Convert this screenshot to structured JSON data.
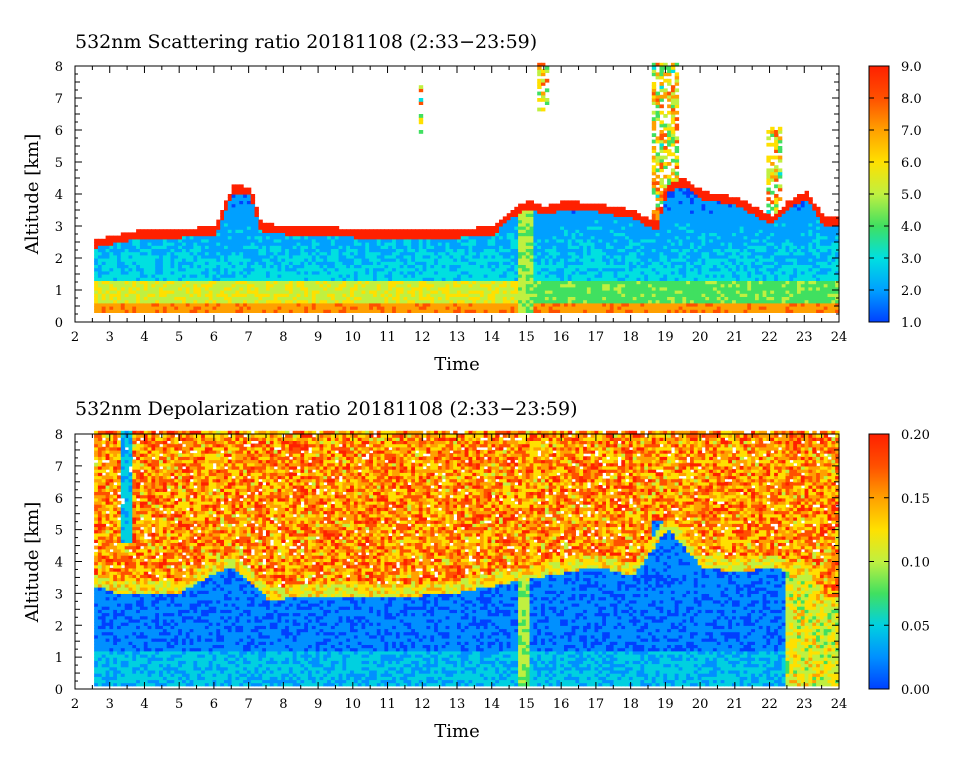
{
  "chart_data": [
    {
      "type": "heatmap",
      "title": "532nm Scattering ratio  20181108 (2:33−23:59)",
      "xlabel": "Time",
      "ylabel": "Altitude [km]",
      "xlim": [
        2,
        24
      ],
      "ylim": [
        0,
        8
      ],
      "x_ticks": [
        "2",
        "3",
        "4",
        "5",
        "6",
        "7",
        "8",
        "9",
        "10",
        "11",
        "12",
        "13",
        "14",
        "15",
        "16",
        "17",
        "18",
        "19",
        "20",
        "21",
        "22",
        "23",
        "24"
      ],
      "y_ticks": [
        "0",
        "1",
        "2",
        "3",
        "4",
        "5",
        "6",
        "7",
        "8"
      ],
      "data_range_hours": [
        2.55,
        24.0
      ],
      "colorbar": {
        "range": [
          1.0,
          9.0
        ],
        "ticks": [
          "1.0",
          "2.0",
          "3.0",
          "4.0",
          "5.0",
          "6.0",
          "7.0",
          "8.0",
          "9.0"
        ],
        "colors": [
          "#0040ff",
          "#00a0ff",
          "#00e0e0",
          "#40e060",
          "#c0f040",
          "#ffe000",
          "#ffa000",
          "#ff5000",
          "#ff2000"
        ]
      },
      "cloud_top_km": [
        [
          2.6,
          2.3
        ],
        [
          3,
          2.4
        ],
        [
          3.5,
          2.5
        ],
        [
          4,
          2.6
        ],
        [
          5,
          2.6
        ],
        [
          6,
          2.7
        ],
        [
          6.5,
          4.0
        ],
        [
          7,
          3.9
        ],
        [
          7.3,
          2.8
        ],
        [
          8,
          2.7
        ],
        [
          9,
          2.7
        ],
        [
          10,
          2.6
        ],
        [
          11,
          2.6
        ],
        [
          12,
          2.6
        ],
        [
          13,
          2.6
        ],
        [
          14,
          2.7
        ],
        [
          14.5,
          3.2
        ],
        [
          15,
          3.5
        ],
        [
          15.5,
          3.3
        ],
        [
          16,
          3.5
        ],
        [
          17,
          3.4
        ],
        [
          18,
          3.2
        ],
        [
          18.7,
          2.8
        ],
        [
          19,
          4.0
        ],
        [
          19.5,
          4.2
        ],
        [
          20,
          3.8
        ],
        [
          21,
          3.6
        ],
        [
          22,
          3.0
        ],
        [
          22.5,
          3.5
        ],
        [
          23,
          3.8
        ],
        [
          23.5,
          3.0
        ]
      ],
      "layers": [
        {
          "t0": 2.6,
          "t1": 24,
          "z0": 0.25,
          "z1": 0.6,
          "value": 7.0
        },
        {
          "t0": 2.6,
          "t1": 14.9,
          "z0": 0.6,
          "z1": 1.3,
          "value": 5.5
        },
        {
          "t0": 2.6,
          "t1": 14.9,
          "z0": 1.3,
          "z1": 1.8,
          "value": 3.5
        },
        {
          "t0": 15,
          "t1": 24,
          "z0": 0.3,
          "z1": 1.4,
          "value": 4.0
        },
        {
          "t0": 2.6,
          "t1": 7.5,
          "z0": 1.8,
          "z1": 2.4,
          "value": 2.0
        }
      ]
    },
    {
      "type": "heatmap",
      "title": "532nm Depolarization ratio  20181108 (2:33−23:59)",
      "xlabel": "Time",
      "ylabel": "Altitude [km]",
      "xlim": [
        2,
        24
      ],
      "ylim": [
        0,
        8
      ],
      "x_ticks": [
        "2",
        "3",
        "4",
        "5",
        "6",
        "7",
        "8",
        "9",
        "10",
        "11",
        "12",
        "13",
        "14",
        "15",
        "16",
        "17",
        "18",
        "19",
        "20",
        "21",
        "22",
        "23",
        "24"
      ],
      "y_ticks": [
        "0",
        "1",
        "2",
        "3",
        "4",
        "5",
        "6",
        "7",
        "8"
      ],
      "data_range_hours": [
        2.55,
        24.0
      ],
      "colorbar": {
        "range": [
          0.0,
          0.2
        ],
        "ticks": [
          "0.00",
          "0.05",
          "0.10",
          "0.15",
          "0.20"
        ],
        "colors": [
          "#0040ff",
          "#0090ff",
          "#00d0e0",
          "#40e060",
          "#c0f040",
          "#ffe000",
          "#ffa000",
          "#ff5000",
          "#ff2000"
        ]
      },
      "cloud_top_km": [
        [
          2.6,
          3.2
        ],
        [
          3,
          3.0
        ],
        [
          4,
          2.9
        ],
        [
          5,
          3.0
        ],
        [
          6,
          3.6
        ],
        [
          6.5,
          3.8
        ],
        [
          7,
          3.3
        ],
        [
          7.5,
          2.8
        ],
        [
          8,
          2.8
        ],
        [
          9,
          2.9
        ],
        [
          10,
          2.9
        ],
        [
          11,
          2.8
        ],
        [
          12,
          2.9
        ],
        [
          13,
          3.0
        ],
        [
          14,
          3.2
        ],
        [
          15,
          3.4
        ],
        [
          16,
          3.6
        ],
        [
          17,
          3.8
        ],
        [
          18,
          3.5
        ],
        [
          18.7,
          4.5
        ],
        [
          19,
          5.0
        ],
        [
          20,
          3.8
        ],
        [
          21,
          3.6
        ],
        [
          22,
          3.8
        ],
        [
          22.5,
          3.6
        ],
        [
          23,
          3.5
        ],
        [
          23.5,
          2.5
        ]
      ],
      "layers": [
        {
          "t0": 2.6,
          "t1": 23.4,
          "z0": 0.15,
          "z1": 1.2,
          "value": 0.04
        },
        {
          "t0": 2.6,
          "t1": 23.4,
          "z0": 1.2,
          "z1": 2.6,
          "value": 0.02
        }
      ]
    }
  ]
}
